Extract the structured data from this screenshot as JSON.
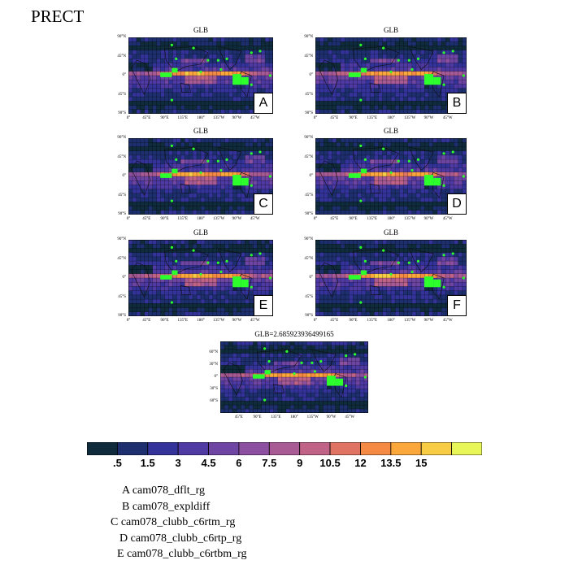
{
  "title": "PRECT",
  "chart_data": [
    {
      "type": "heatmap",
      "title": "GLB",
      "panel_label": "A",
      "yticks": [
        "90°N",
        "45°N",
        "0°",
        "45°S",
        "90°S"
      ],
      "xticks": [
        "0°",
        "45°E",
        "90°E",
        "135°E",
        "180°",
        "135°W",
        "90°W",
        "45°W"
      ]
    },
    {
      "type": "heatmap",
      "title": "GLB",
      "panel_label": "B",
      "yticks": [
        "90°N",
        "45°N",
        "0°",
        "45°S",
        "90°S"
      ],
      "xticks": [
        "0°",
        "45°E",
        "90°E",
        "135°E",
        "180°",
        "135°W",
        "90°W",
        "45°W"
      ]
    },
    {
      "type": "heatmap",
      "title": "GLB",
      "panel_label": "C",
      "yticks": [
        "90°N",
        "45°N",
        "0°",
        "45°S",
        "90°S"
      ],
      "xticks": [
        "0°",
        "45°E",
        "90°E",
        "135°E",
        "180°",
        "135°W",
        "90°W",
        "45°W"
      ]
    },
    {
      "type": "heatmap",
      "title": "GLB",
      "panel_label": "D",
      "yticks": [
        "90°N",
        "45°N",
        "0°",
        "45°S",
        "90°S"
      ],
      "xticks": [
        "0°",
        "45°E",
        "90°E",
        "135°E",
        "180°",
        "135°W",
        "90°W",
        "45°W"
      ]
    },
    {
      "type": "heatmap",
      "title": "GLB",
      "panel_label": "E",
      "yticks": [
        "90°N",
        "45°N",
        "0°",
        "45°S",
        "90°S"
      ],
      "xticks": [
        "0°",
        "45°E",
        "90°E",
        "135°E",
        "180°",
        "135°W",
        "90°W",
        "45°W"
      ]
    },
    {
      "type": "heatmap",
      "title": "GLB",
      "panel_label": "F",
      "yticks": [
        "90°N",
        "45°N",
        "0°",
        "45°S",
        "90°S"
      ],
      "xticks": [
        "0°",
        "45°E",
        "90°E",
        "135°E",
        "180°",
        "135°W",
        "90°W",
        "45°W"
      ]
    },
    {
      "type": "heatmap",
      "title": "GLB=2.685923936499165",
      "panel_label": "",
      "yticks": [
        "60°N",
        "30°N",
        "0°",
        "30°S",
        "60°S"
      ],
      "xticks": [
        "45°E",
        "90°E",
        "135°E",
        "180°",
        "135°W",
        "90°W",
        "45°W"
      ]
    }
  ],
  "colorbar": {
    "labels": [
      ".5",
      "1.5",
      "3",
      "4.5",
      "6",
      "7.5",
      "9",
      "10.5",
      "12",
      "13.5",
      "15"
    ],
    "colors": [
      "#0f2b3c",
      "#1d2f6e",
      "#33339a",
      "#4f3aa3",
      "#6e45a3",
      "#8d50a0",
      "#a85a95",
      "#c06386",
      "#e07464",
      "#f58a45",
      "#fba73c",
      "#f9cc45",
      "#e9f65a"
    ]
  },
  "legend": [
    {
      "letter": "A",
      "text": "cam078_dflt_rg"
    },
    {
      "letter": "B",
      "text": "cam078_expldiff"
    },
    {
      "letter": "C",
      "text": "cam078_clubb_c6rtm_rg"
    },
    {
      "letter": "D",
      "text": "cam078_clubb_c6rtp_rg"
    },
    {
      "letter": "E",
      "text": "cam078_clubb_c6rtbm_rg"
    }
  ]
}
